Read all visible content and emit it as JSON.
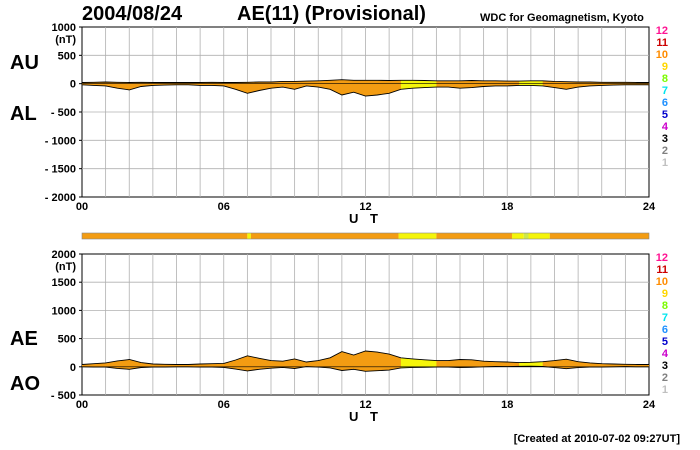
{
  "header": {
    "date": "2004/08/24",
    "title": "AE(11) (Provisional)",
    "source": "WDC for Geomagnetism, Kyoto"
  },
  "footer": {
    "created": "[Created at 2010-07-02 09:27UT]"
  },
  "colors": {
    "fill_main": "#f39c12",
    "fill_low": "#f5f50a",
    "fill_mid": "#cde84a",
    "grid": "#b0b0b0",
    "line": "#000000"
  },
  "legend_levels": [
    {
      "label": "12",
      "color": "#ff1493"
    },
    {
      "label": "11",
      "color": "#cc0000"
    },
    {
      "label": "10",
      "color": "#ff8c00"
    },
    {
      "label": "9",
      "color": "#ffd700"
    },
    {
      "label": "8",
      "color": "#7cfc00"
    },
    {
      "label": "7",
      "color": "#00e5ee"
    },
    {
      "label": "6",
      "color": "#1e90ff"
    },
    {
      "label": "5",
      "color": "#0000cd"
    },
    {
      "label": "4",
      "color": "#cc00cc"
    },
    {
      "label": "3",
      "color": "#000000"
    },
    {
      "label": "2",
      "color": "#808080"
    },
    {
      "label": "1",
      "color": "#c0c0c0"
    }
  ],
  "activity_bar": {
    "segments": [
      {
        "start": 0,
        "end": 7.0,
        "level": 10
      },
      {
        "start": 7.0,
        "end": 7.15,
        "level": 9
      },
      {
        "start": 7.15,
        "end": 13.4,
        "level": 10
      },
      {
        "start": 13.4,
        "end": 15.0,
        "level": 9
      },
      {
        "start": 15.0,
        "end": 18.2,
        "level": 10
      },
      {
        "start": 18.2,
        "end": 18.7,
        "level": 9
      },
      {
        "start": 18.7,
        "end": 18.9,
        "level": 8
      },
      {
        "start": 18.9,
        "end": 19.8,
        "level": 9
      },
      {
        "start": 19.8,
        "end": 24,
        "level": 10
      }
    ]
  },
  "chart_data": [
    {
      "type": "area",
      "id": "au-al",
      "panel_labels": [
        "AU",
        "AL"
      ],
      "xlabel": "U T",
      "ylabel": "",
      "units_label": "(nT)",
      "xlim": [
        0,
        24
      ],
      "ylim": [
        -2000,
        1000
      ],
      "xticks": [
        "00",
        "06",
        "12",
        "18",
        "24"
      ],
      "yticks": [
        "1000",
        "500",
        "0",
        "- 500",
        "- 1000",
        "- 1500",
        "- 2000"
      ],
      "x": [
        0,
        0.5,
        1,
        1.5,
        2,
        2.5,
        3,
        3.5,
        4,
        4.5,
        5,
        5.5,
        6,
        6.5,
        7,
        7.5,
        8,
        8.5,
        9,
        9.5,
        10,
        10.5,
        11,
        11.5,
        12,
        12.5,
        13,
        13.5,
        14,
        14.5,
        15,
        15.5,
        16,
        16.5,
        17,
        17.5,
        18,
        18.5,
        19,
        19.5,
        20,
        20.5,
        21,
        21.5,
        22,
        22.5,
        23,
        23.5,
        24
      ],
      "series": [
        {
          "name": "AU",
          "values": [
            20,
            25,
            30,
            25,
            20,
            25,
            20,
            20,
            20,
            20,
            20,
            25,
            20,
            20,
            25,
            30,
            30,
            40,
            40,
            45,
            50,
            60,
            70,
            60,
            60,
            60,
            55,
            60,
            60,
            55,
            50,
            50,
            50,
            55,
            50,
            50,
            45,
            45,
            50,
            50,
            40,
            35,
            30,
            30,
            25,
            25,
            25,
            20,
            20
          ]
        },
        {
          "name": "AL",
          "values": [
            -20,
            -30,
            -40,
            -80,
            -110,
            -50,
            -30,
            -25,
            -20,
            -20,
            -30,
            -30,
            -40,
            -100,
            -170,
            -120,
            -80,
            -60,
            -100,
            -40,
            -60,
            -100,
            -200,
            -150,
            -220,
            -200,
            -170,
            -100,
            -80,
            -70,
            -60,
            -60,
            -80,
            -70,
            -50,
            -40,
            -40,
            -30,
            -30,
            -40,
            -70,
            -100,
            -60,
            -40,
            -30,
            -25,
            -20,
            -20,
            -20
          ]
        }
      ]
    },
    {
      "type": "area",
      "id": "ae-ao",
      "panel_labels": [
        "AE",
        "AO"
      ],
      "xlabel": "U T",
      "ylabel": "",
      "units_label": "(nT)",
      "xlim": [
        0,
        24
      ],
      "ylim": [
        -500,
        2000
      ],
      "xticks": [
        "00",
        "06",
        "12",
        "18",
        "24"
      ],
      "yticks": [
        "2000",
        "1500",
        "1000",
        "500",
        "0",
        "- 500"
      ],
      "x": [
        0,
        0.5,
        1,
        1.5,
        2,
        2.5,
        3,
        3.5,
        4,
        4.5,
        5,
        5.5,
        6,
        6.5,
        7,
        7.5,
        8,
        8.5,
        9,
        9.5,
        10,
        10.5,
        11,
        11.5,
        12,
        12.5,
        13,
        13.5,
        14,
        14.5,
        15,
        15.5,
        16,
        16.5,
        17,
        17.5,
        18,
        18.5,
        19,
        19.5,
        20,
        20.5,
        21,
        21.5,
        22,
        22.5,
        23,
        23.5,
        24
      ],
      "series": [
        {
          "name": "AE",
          "values": [
            40,
            55,
            70,
            105,
            130,
            75,
            50,
            45,
            40,
            40,
            50,
            55,
            60,
            120,
            195,
            150,
            110,
            100,
            140,
            85,
            110,
            160,
            270,
            210,
            280,
            260,
            225,
            160,
            140,
            125,
            110,
            110,
            130,
            125,
            100,
            90,
            85,
            75,
            80,
            90,
            110,
            135,
            90,
            70,
            55,
            50,
            45,
            40,
            40
          ]
        },
        {
          "name": "AO",
          "values": [
            0,
            -3,
            -5,
            -28,
            -45,
            -13,
            -5,
            -3,
            0,
            0,
            -5,
            -3,
            -10,
            -40,
            -73,
            -45,
            -25,
            -10,
            -30,
            3,
            -5,
            -20,
            -65,
            -45,
            -80,
            -70,
            -58,
            -20,
            -10,
            -8,
            -5,
            -5,
            -15,
            -8,
            0,
            5,
            3,
            8,
            10,
            5,
            -15,
            -33,
            -15,
            -5,
            -3,
            0,
            3,
            0,
            0
          ]
        }
      ]
    }
  ]
}
